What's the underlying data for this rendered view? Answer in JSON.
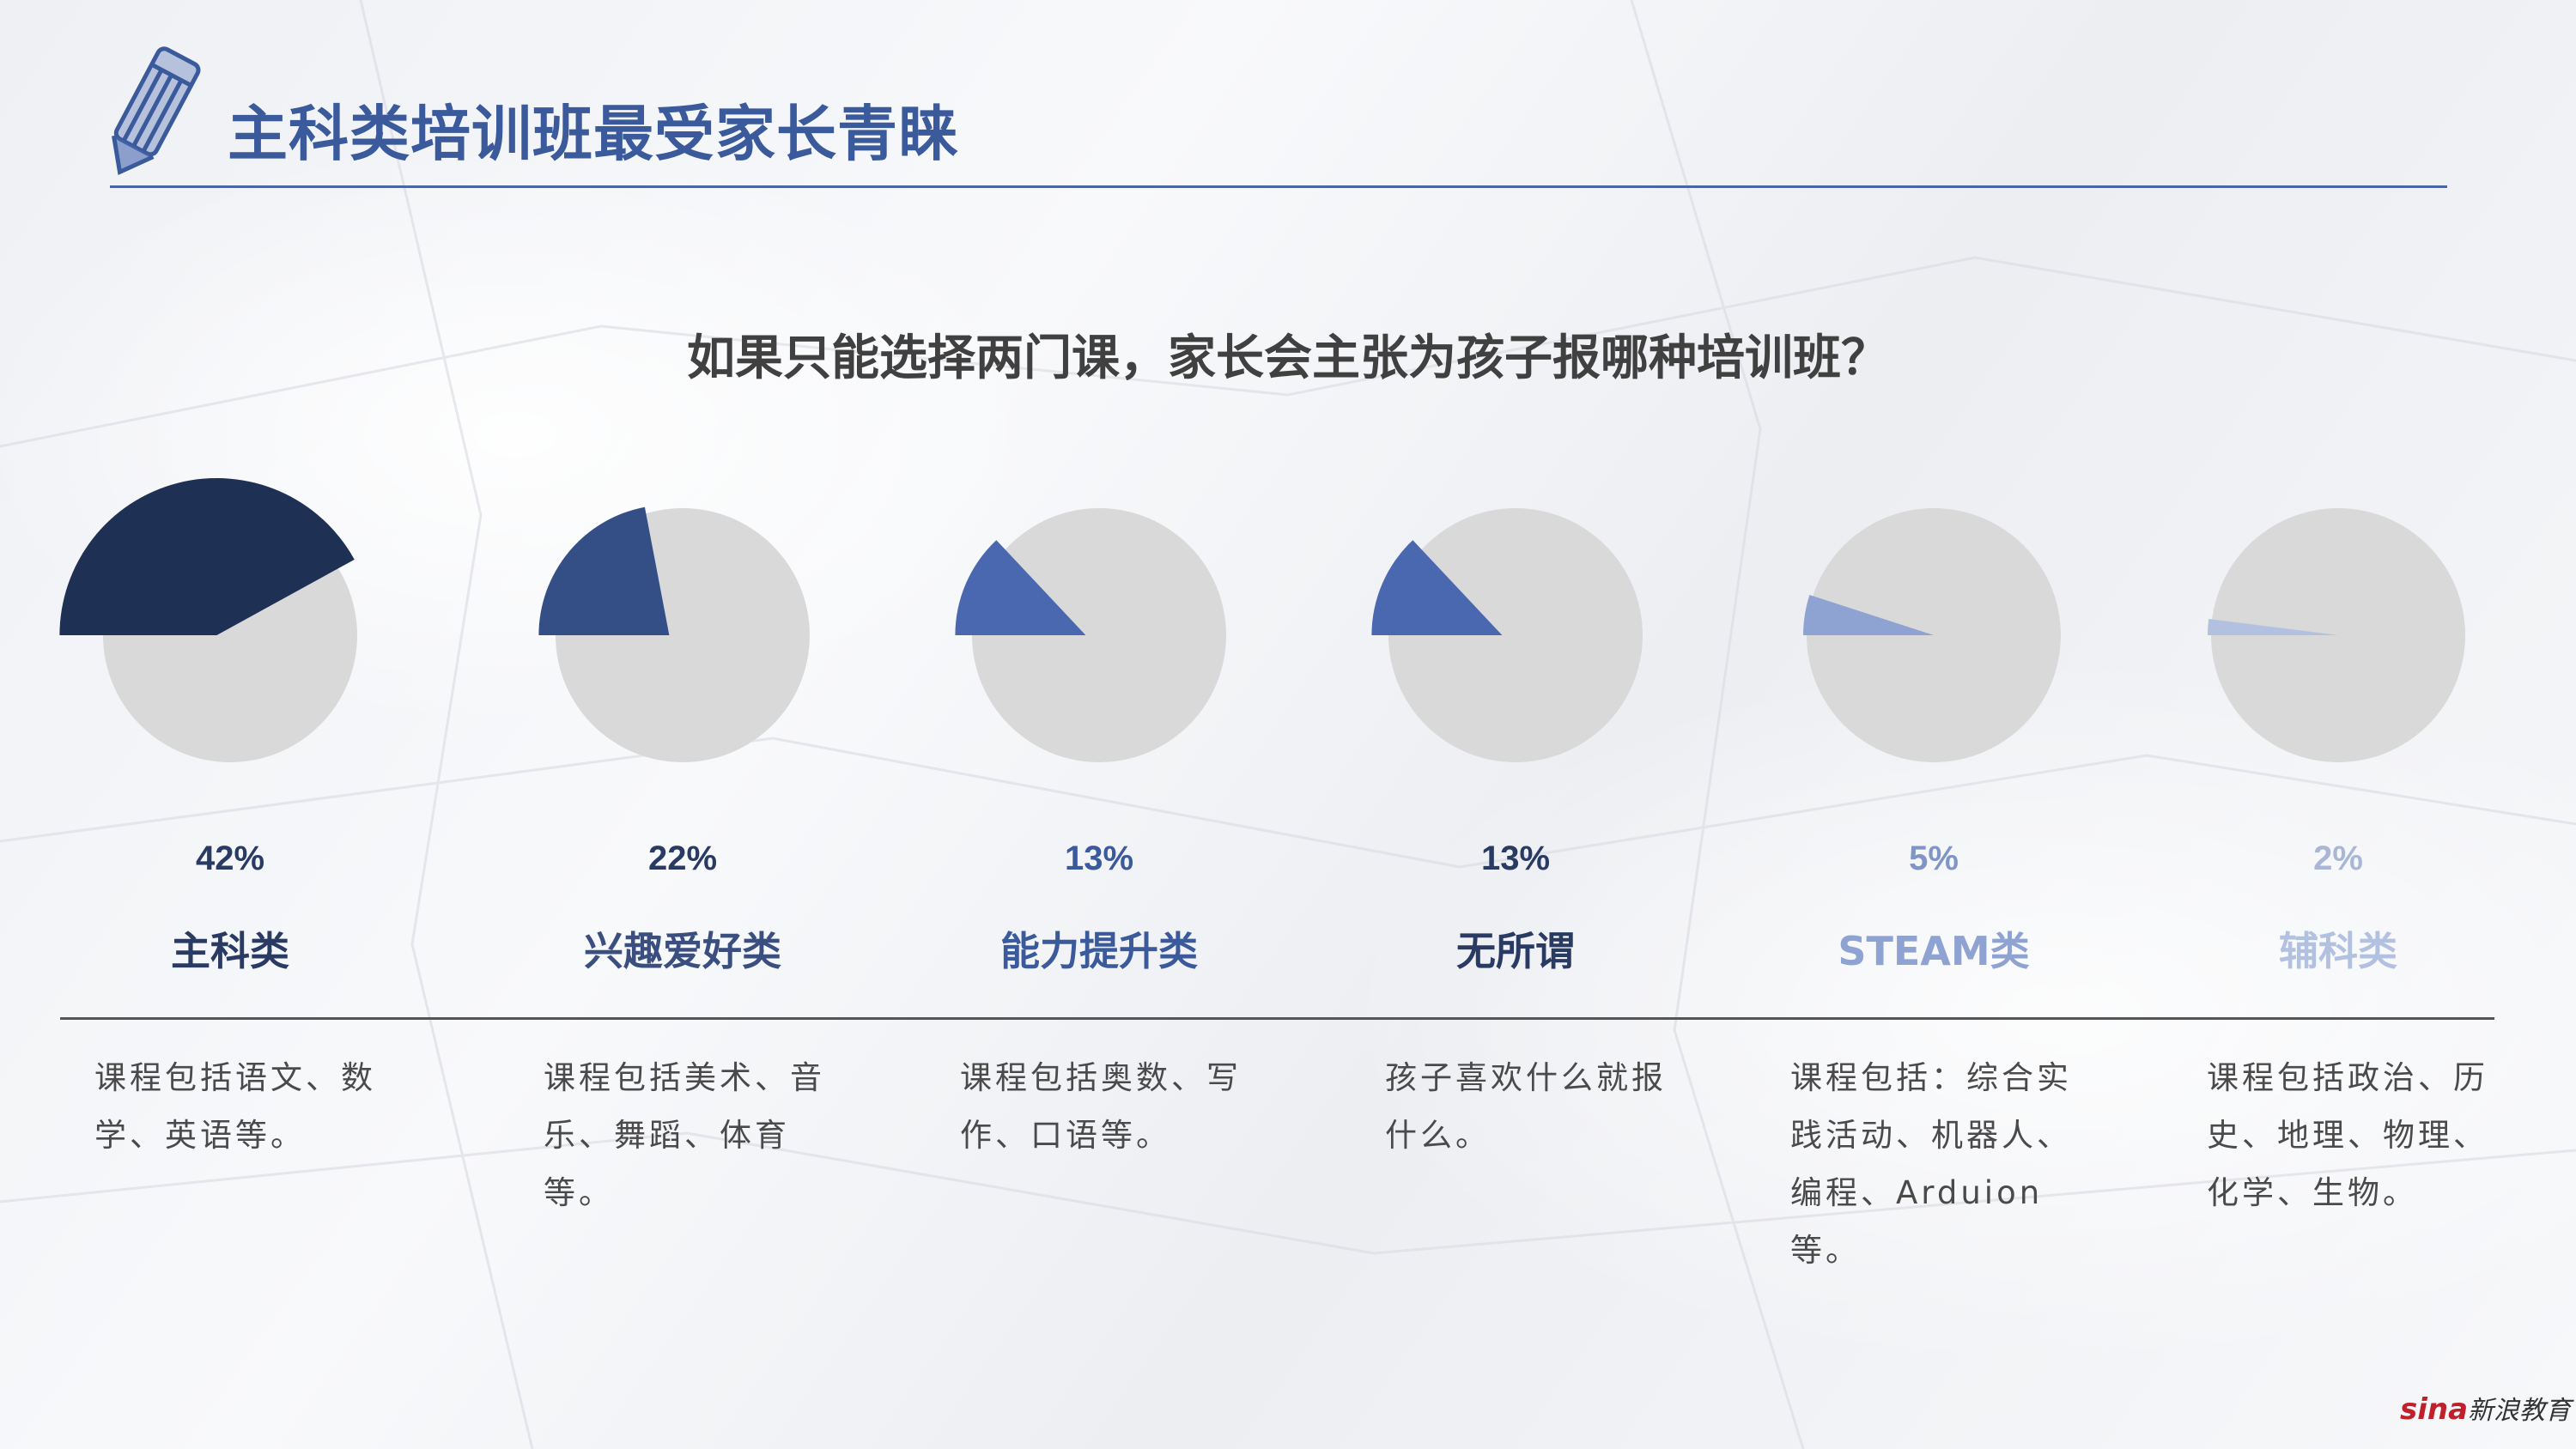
{
  "page": {
    "title": "主科类培训班最受家长青睐",
    "question": "如果只能选择两门课，家长会主张为孩子报哪种培训班？",
    "brand": {
      "mark": "sina",
      "text": "新浪教育"
    }
  },
  "colors": {
    "title": "#3a5a9c",
    "rule": "#4a64a6",
    "pie_rest": "#d9d9d9",
    "series": [
      "#1f3055",
      "#344f86",
      "#4a68b0",
      "#4a68b0",
      "#8fa3d2",
      "#b3c1e0"
    ]
  },
  "items": [
    {
      "value_label": "42%",
      "category": "主科类",
      "description": "课程包括语文、数学、英语等。"
    },
    {
      "value_label": "22%",
      "category": "兴趣爱好类",
      "description": "课程包括美术、音乐、舞蹈、体育等。"
    },
    {
      "value_label": "13%",
      "category": "能力提升类",
      "description": "课程包括奥数、写作、口语等。"
    },
    {
      "value_label": "13%",
      "category": "无所谓",
      "description": "孩子喜欢什么就报什么。"
    },
    {
      "value_label": "5%",
      "category": "STEAM类",
      "description": "课程包括：综合实践活动、机器人、编程、Arduion等。"
    },
    {
      "value_label": "2%",
      "category": "辅科类",
      "description": "课程包括政治、历史、地理、物理、化学、生物。"
    }
  ],
  "chart_data": {
    "type": "pie",
    "title": "如果只能选择两门课，家长会主张为孩子报哪种培训班？",
    "categories": [
      "主科类",
      "兴趣爱好类",
      "能力提升类",
      "无所谓",
      "STEAM类",
      "辅科类"
    ],
    "values": [
      42,
      22,
      13,
      13,
      5,
      2
    ],
    "unit": "%"
  }
}
